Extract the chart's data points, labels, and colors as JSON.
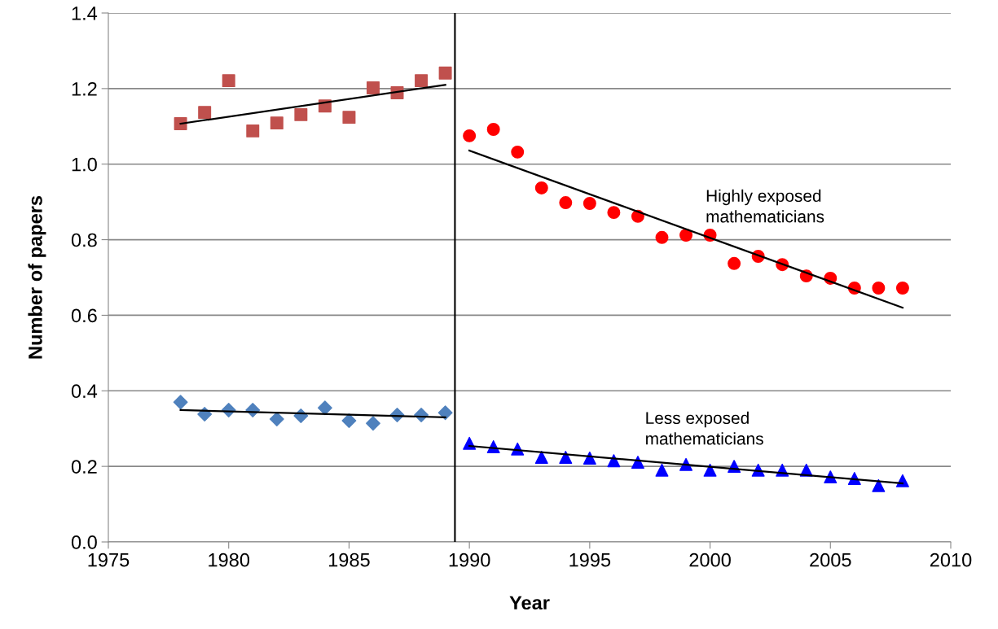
{
  "chart_data": {
    "type": "scatter",
    "xlabel": "Year",
    "ylabel": "Number of papers",
    "xlim": [
      1975,
      2010
    ],
    "xticks": [
      1975,
      1980,
      1985,
      1990,
      1995,
      2000,
      2005,
      2010
    ],
    "ylim": [
      0,
      1.4
    ],
    "yticks": [
      {
        "value": 0,
        "label": "0.0"
      },
      {
        "value": 0.2,
        "label": "0.2"
      },
      {
        "value": 0.4,
        "label": "0.4"
      },
      {
        "value": 0.6,
        "label": "0.6"
      },
      {
        "value": 0.8,
        "label": "0.8"
      },
      {
        "value": 1.0,
        "label": "1.0"
      },
      {
        "value": 1.2,
        "label": "1.2"
      },
      {
        "value": 1.4,
        "label": "1.4"
      }
    ],
    "grid": "y",
    "legend": false,
    "series": [
      {
        "color": "#c0504d",
        "marker": "square",
        "x": [
          1978,
          1979,
          1980,
          1981,
          1982,
          1983,
          1984,
          1985,
          1986,
          1987,
          1988,
          1989
        ],
        "values": [
          1.107,
          1.137,
          1.221,
          1.088,
          1.109,
          1.131,
          1.154,
          1.124,
          1.202,
          1.189,
          1.221,
          1.241
        ]
      },
      {
        "color": "#ff0000",
        "marker": "circle",
        "x": [
          1990,
          1991,
          1992,
          1993,
          1994,
          1995,
          1996,
          1997,
          1998,
          1999,
          2000,
          2001,
          2002,
          2003,
          2004,
          2005,
          2006,
          2007,
          2008
        ],
        "values": [
          1.075,
          1.092,
          1.032,
          0.937,
          0.898,
          0.896,
          0.872,
          0.862,
          0.806,
          0.812,
          0.812,
          0.737,
          0.756,
          0.734,
          0.704,
          0.698,
          0.672,
          0.672,
          0.672
        ]
      },
      {
        "color": "#4f81bd",
        "marker": "diamond",
        "x": [
          1978,
          1979,
          1980,
          1981,
          1982,
          1983,
          1984,
          1985,
          1986,
          1987,
          1988,
          1989
        ],
        "values": [
          0.37,
          0.338,
          0.349,
          0.349,
          0.325,
          0.334,
          0.355,
          0.321,
          0.314,
          0.336,
          0.336,
          0.342
        ]
      },
      {
        "color": "#0000ff",
        "marker": "triangle",
        "x": [
          1990,
          1991,
          1992,
          1993,
          1994,
          1995,
          1996,
          1997,
          1998,
          1999,
          2000,
          2001,
          2002,
          2003,
          2004,
          2005,
          2006,
          2007,
          2008
        ],
        "values": [
          0.261,
          0.252,
          0.246,
          0.224,
          0.224,
          0.222,
          0.215,
          0.211,
          0.19,
          0.205,
          0.19,
          0.2,
          0.19,
          0.19,
          0.19,
          0.172,
          0.168,
          0.149,
          0.162
        ]
      },
      {
        "type": "line",
        "color": "#000000",
        "x": [
          1978,
          1989
        ],
        "values": [
          1.107,
          1.21
        ]
      },
      {
        "type": "line",
        "color": "#000000",
        "x": [
          1990,
          2008
        ],
        "values": [
          1.036,
          0.62
        ]
      },
      {
        "type": "line",
        "color": "#000000",
        "x": [
          1978,
          1989
        ],
        "values": [
          0.349,
          0.33
        ]
      },
      {
        "type": "line",
        "color": "#000000",
        "x": [
          1990,
          2008
        ],
        "values": [
          0.254,
          0.155
        ]
      }
    ],
    "ref_lines": [
      {
        "axis": "x",
        "value": 1989.4,
        "color": "#000000"
      }
    ],
    "annotations": [
      "Highly exposed\nmathematicians",
      "Less exposed\nmathematicians"
    ]
  }
}
